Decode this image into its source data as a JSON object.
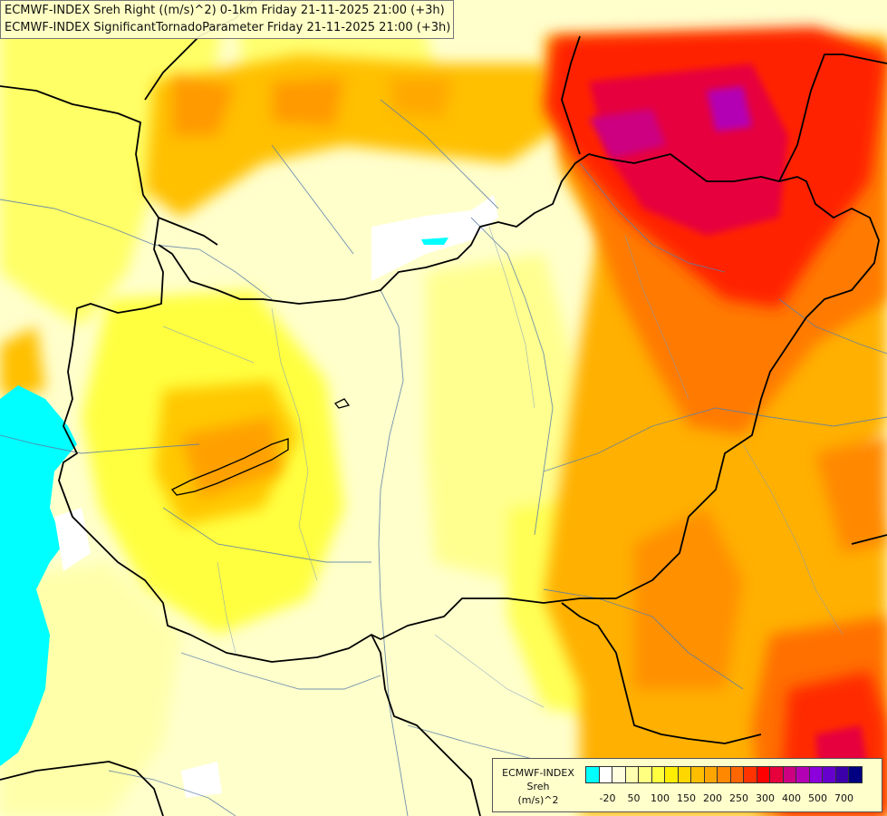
{
  "header": {
    "line1": "ECMWF-INDEX Sreh Right ((m/s)^2) 0-1km Friday 21-11-2025 21:00 (+3h)",
    "line2": "ECMWF-INDEX SignificantTornadoParameter Friday 21-11-2025 21:00 (+3h)"
  },
  "legend": {
    "line1": "ECMWF-INDEX",
    "line2": "Sreh",
    "line3": "(m/s)^2",
    "colors": [
      "#00ffff",
      "#ffffff",
      "#ffffe0",
      "#ffffb0",
      "#ffff80",
      "#ffff40",
      "#ffee00",
      "#ffd700",
      "#ffbf00",
      "#ffa500",
      "#ff8800",
      "#ff6600",
      "#ff3300",
      "#ff0000",
      "#e6003c",
      "#cc0080",
      "#b400b4",
      "#8c00dc",
      "#6600cc",
      "#3c00aa",
      "#000080"
    ],
    "ticks": [
      {
        "label": "-20",
        "index": 1
      },
      {
        "label": "50",
        "index": 3
      },
      {
        "label": "100",
        "index": 5
      },
      {
        "label": "150",
        "index": 7
      },
      {
        "label": "200",
        "index": 9
      },
      {
        "label": "250",
        "index": 11
      },
      {
        "label": "300",
        "index": 13
      },
      {
        "label": "400",
        "index": 15
      },
      {
        "label": "500",
        "index": 17
      },
      {
        "label": "700",
        "index": 19
      }
    ]
  },
  "map": {
    "background_color": "#ffffcc",
    "low_values_color": "#00ffff",
    "peak_color": "#cc0080"
  }
}
